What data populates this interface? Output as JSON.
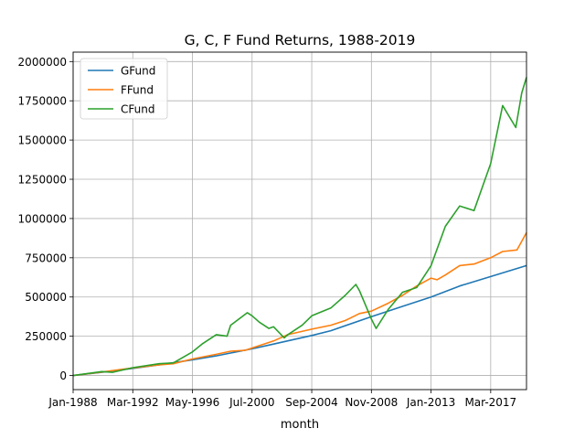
{
  "chart_data": {
    "type": "line",
    "title": "G, C, F Fund Returns, 1988-2019",
    "xlabel": "month",
    "ylabel": "",
    "x_tick_labels": [
      "Jan-1988",
      "Mar-1992",
      "May-1996",
      "Jul-2000",
      "Sep-2004",
      "Nov-2008",
      "Jan-2013",
      "Mar-2017"
    ],
    "y_ticks": [
      0,
      250000,
      500000,
      750000,
      1000000,
      1250000,
      1500000,
      1750000,
      2000000
    ],
    "ylim": [
      -90000,
      2060000
    ],
    "xlim": [
      "Jan-1988",
      "Sep-2019"
    ],
    "grid": true,
    "legend_position": "upper-left",
    "series": [
      {
        "name": "GFund",
        "color": "#1f77b4",
        "points": [
          [
            "Jan-1988",
            0
          ],
          [
            "Jan-1990",
            20000
          ],
          [
            "Mar-1992",
            45000
          ],
          [
            "Jan-1994",
            68000
          ],
          [
            "May-1996",
            100000
          ],
          [
            "Jan-1998",
            125000
          ],
          [
            "Jul-2000",
            170000
          ],
          [
            "Jan-2002",
            200000
          ],
          [
            "Sep-2004",
            255000
          ],
          [
            "Jan-2006",
            285000
          ],
          [
            "Nov-2008",
            375000
          ],
          [
            "Jan-2011",
            440000
          ],
          [
            "Jan-2013",
            500000
          ],
          [
            "Jan-2015",
            570000
          ],
          [
            "Mar-2017",
            630000
          ],
          [
            "Sep-2019",
            700000
          ]
        ]
      },
      {
        "name": "FFund",
        "color": "#ff7f0e",
        "points": [
          [
            "Jan-1988",
            0
          ],
          [
            "Jan-1990",
            22000
          ],
          [
            "Mar-1992",
            48000
          ],
          [
            "Jan-1994",
            68000
          ],
          [
            "Jan-1995",
            75000
          ],
          [
            "May-1996",
            105000
          ],
          [
            "Jan-1998",
            135000
          ],
          [
            "Jan-1999",
            155000
          ],
          [
            "Jan-2000",
            160000
          ],
          [
            "Jul-2000",
            175000
          ],
          [
            "Jan-2002",
            220000
          ],
          [
            "Jan-2003",
            260000
          ],
          [
            "Sep-2004",
            295000
          ],
          [
            "Jan-2006",
            320000
          ],
          [
            "Jan-2007",
            350000
          ],
          [
            "Jan-2008",
            395000
          ],
          [
            "Nov-2008",
            410000
          ],
          [
            "Jan-2010",
            460000
          ],
          [
            "Jan-2011",
            510000
          ],
          [
            "Jan-2012",
            570000
          ],
          [
            "Jan-2013",
            620000
          ],
          [
            "Jun-2013",
            610000
          ],
          [
            "Jan-2014",
            640000
          ],
          [
            "Jan-2015",
            700000
          ],
          [
            "Jan-2016",
            710000
          ],
          [
            "Mar-2017",
            750000
          ],
          [
            "Jan-2018",
            790000
          ],
          [
            "Jan-2019",
            800000
          ],
          [
            "Sep-2019",
            910000
          ]
        ]
      },
      {
        "name": "CFund",
        "color": "#2ca02c",
        "points": [
          [
            "Jan-1988",
            0
          ],
          [
            "Jan-1990",
            25000
          ],
          [
            "Oct-1990",
            20000
          ],
          [
            "Mar-1992",
            50000
          ],
          [
            "Jan-1994",
            75000
          ],
          [
            "Jan-1995",
            80000
          ],
          [
            "May-1996",
            150000
          ],
          [
            "Jan-1997",
            200000
          ],
          [
            "Jan-1998",
            260000
          ],
          [
            "Oct-1998",
            250000
          ],
          [
            "Jan-1999",
            320000
          ],
          [
            "Mar-2000",
            400000
          ],
          [
            "Jul-2000",
            380000
          ],
          [
            "Jan-2001",
            340000
          ],
          [
            "Sep-2001",
            300000
          ],
          [
            "Jan-2002",
            310000
          ],
          [
            "Oct-2002",
            240000
          ],
          [
            "Jan-2003",
            260000
          ],
          [
            "Jan-2004",
            320000
          ],
          [
            "Sep-2004",
            380000
          ],
          [
            "Jan-2006",
            430000
          ],
          [
            "Jan-2007",
            510000
          ],
          [
            "Oct-2007",
            580000
          ],
          [
            "Jan-2008",
            540000
          ],
          [
            "Nov-2008",
            360000
          ],
          [
            "Mar-2009",
            300000
          ],
          [
            "Jan-2010",
            420000
          ],
          [
            "Jan-2011",
            530000
          ],
          [
            "Jan-2012",
            560000
          ],
          [
            "Jan-2013",
            700000
          ],
          [
            "Jan-2014",
            950000
          ],
          [
            "Jan-2015",
            1080000
          ],
          [
            "Jan-2016",
            1050000
          ],
          [
            "Mar-2017",
            1350000
          ],
          [
            "Jan-2018",
            1720000
          ],
          [
            "Dec-2018",
            1580000
          ],
          [
            "May-2019",
            1800000
          ],
          [
            "Sep-2019",
            1900000
          ]
        ]
      }
    ]
  }
}
